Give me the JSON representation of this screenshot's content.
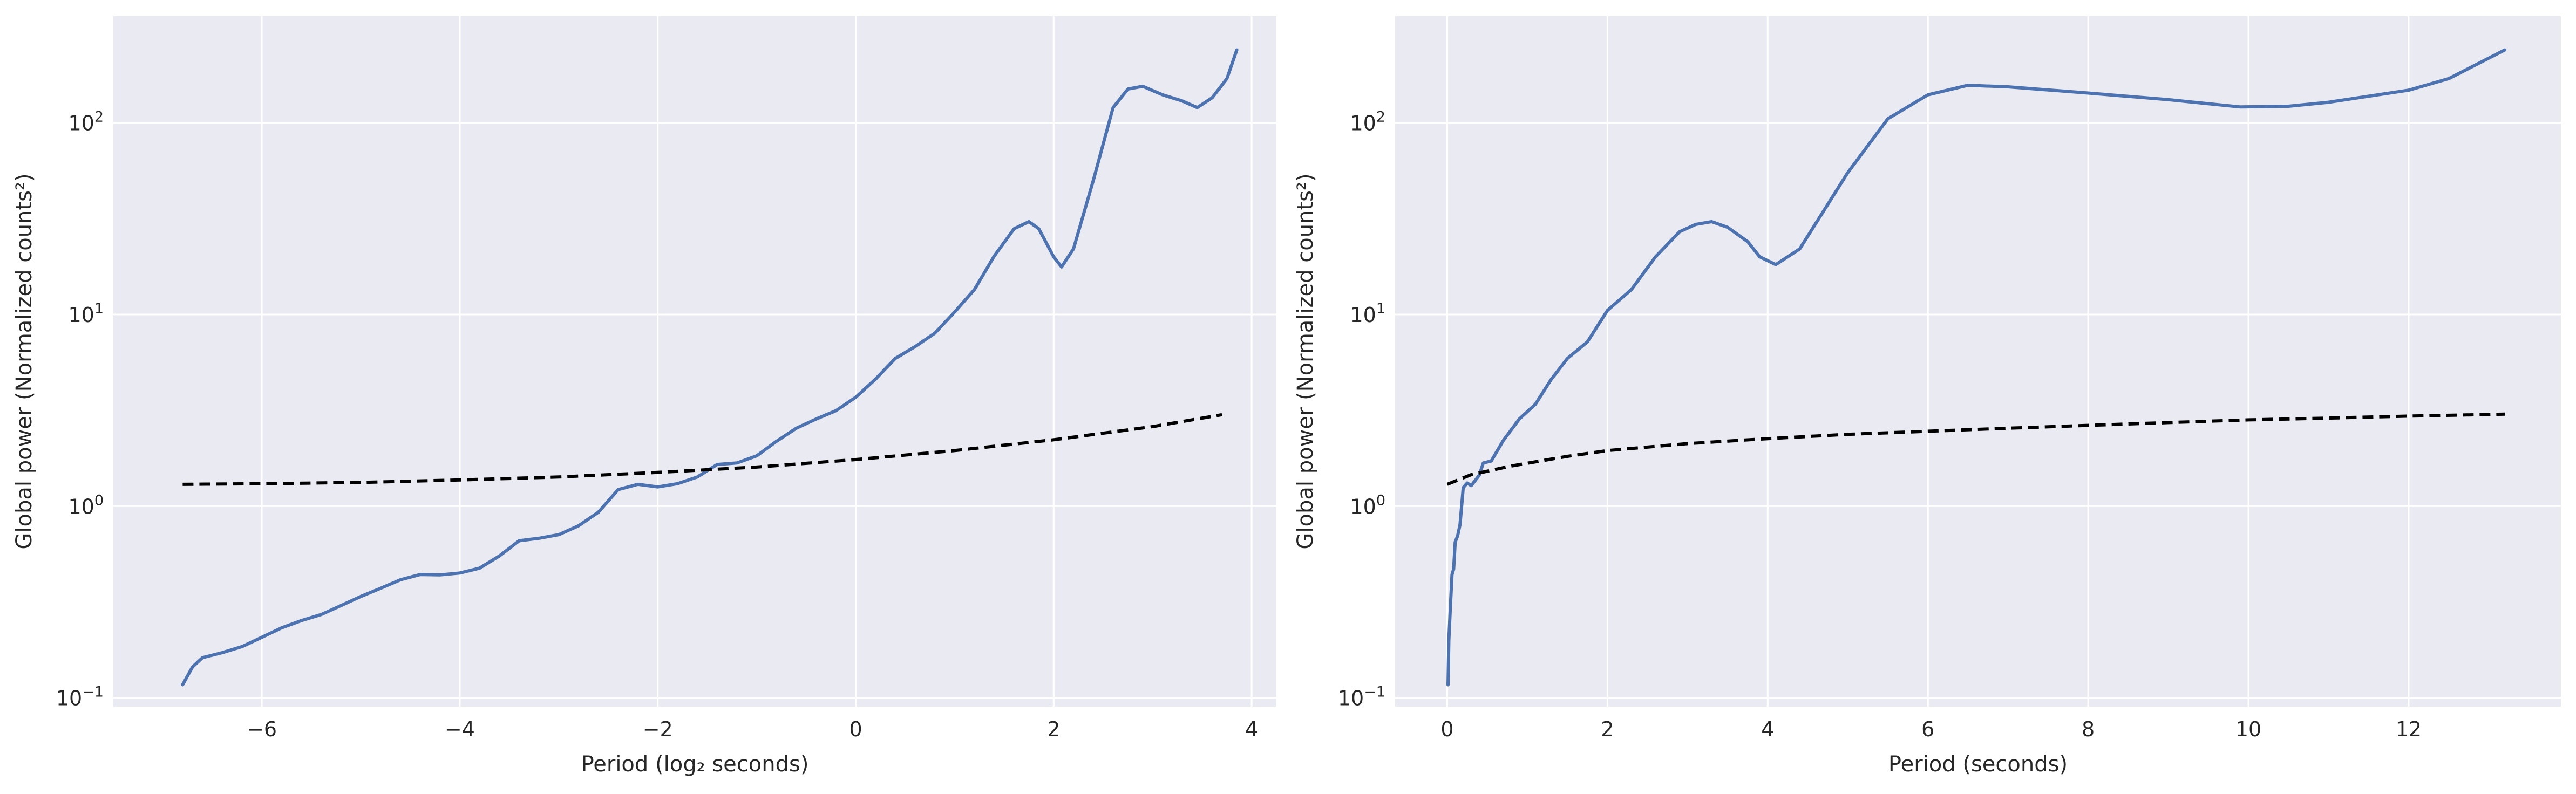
{
  "colors": {
    "background": "#ffffff",
    "plot_bg": "#eaeaf2",
    "grid": "#ffffff",
    "series": "#4c72b0",
    "significance": "#000000",
    "text": "#262626"
  },
  "chart_data": [
    {
      "type": "line",
      "xlabel": "Period (log₂ seconds)",
      "ylabel": "Global power (Normalized counts²)",
      "xlim": [
        -7.5,
        4.25
      ],
      "ylim": [
        0.09,
        360
      ],
      "yscale": "log",
      "grid": true,
      "xticks": [
        -6,
        -4,
        -2,
        0,
        2,
        4
      ],
      "xtick_labels": [
        "−6",
        "−4",
        "−2",
        "0",
        "2",
        "4"
      ],
      "yticks": [
        0.1,
        1,
        10,
        100
      ],
      "ytick_labels": [
        {
          "base": "10",
          "exp": "−1"
        },
        {
          "base": "10",
          "exp": "0"
        },
        {
          "base": "10",
          "exp": "1"
        },
        {
          "base": "10",
          "exp": "2"
        }
      ],
      "series": [
        {
          "style": "solid",
          "color": "#4c72b0",
          "points": [
            [
              -6.8,
              0.117
            ],
            [
              -6.7,
              0.145
            ],
            [
              -6.6,
              0.162
            ],
            [
              -6.4,
              0.172
            ],
            [
              -6.2,
              0.185
            ],
            [
              -6.0,
              0.207
            ],
            [
              -5.8,
              0.232
            ],
            [
              -5.6,
              0.253
            ],
            [
              -5.4,
              0.272
            ],
            [
              -5.2,
              0.303
            ],
            [
              -5.0,
              0.338
            ],
            [
              -4.8,
              0.373
            ],
            [
              -4.6,
              0.413
            ],
            [
              -4.4,
              0.44
            ],
            [
              -4.2,
              0.438
            ],
            [
              -4.0,
              0.448
            ],
            [
              -3.8,
              0.475
            ],
            [
              -3.6,
              0.55
            ],
            [
              -3.4,
              0.66
            ],
            [
              -3.2,
              0.68
            ],
            [
              -3.0,
              0.71
            ],
            [
              -2.8,
              0.79
            ],
            [
              -2.6,
              0.93
            ],
            [
              -2.4,
              1.22
            ],
            [
              -2.2,
              1.3
            ],
            [
              -2.0,
              1.26
            ],
            [
              -1.8,
              1.31
            ],
            [
              -1.6,
              1.42
            ],
            [
              -1.4,
              1.65
            ],
            [
              -1.2,
              1.68
            ],
            [
              -1.0,
              1.83
            ],
            [
              -0.8,
              2.18
            ],
            [
              -0.6,
              2.55
            ],
            [
              -0.4,
              2.85
            ],
            [
              -0.2,
              3.15
            ],
            [
              0.0,
              3.7
            ],
            [
              0.2,
              4.6
            ],
            [
              0.4,
              5.9
            ],
            [
              0.6,
              6.8
            ],
            [
              0.8,
              8.0
            ],
            [
              1.0,
              10.3
            ],
            [
              1.2,
              13.5
            ],
            [
              1.4,
              20.2
            ],
            [
              1.6,
              28.0
            ],
            [
              1.75,
              30.5
            ],
            [
              1.85,
              28.0
            ],
            [
              2.0,
              20.0
            ],
            [
              2.08,
              17.7
            ],
            [
              2.2,
              22.0
            ],
            [
              2.4,
              50.0
            ],
            [
              2.6,
              120.0
            ],
            [
              2.75,
              150.0
            ],
            [
              2.9,
              155.0
            ],
            [
              3.1,
              140.0
            ],
            [
              3.3,
              130.0
            ],
            [
              3.45,
              120.0
            ],
            [
              3.6,
              135.0
            ],
            [
              3.75,
              170.0
            ],
            [
              3.85,
              240.0
            ]
          ]
        },
        {
          "style": "dashed",
          "color": "#000000",
          "points": [
            [
              -6.8,
              1.3
            ],
            [
              -6.0,
              1.31
            ],
            [
              -5.0,
              1.33
            ],
            [
              -4.0,
              1.37
            ],
            [
              -3.0,
              1.42
            ],
            [
              -2.0,
              1.5
            ],
            [
              -1.0,
              1.6
            ],
            [
              0.0,
              1.75
            ],
            [
              1.0,
              1.95
            ],
            [
              2.0,
              2.22
            ],
            [
              3.0,
              2.6
            ],
            [
              3.7,
              3.0
            ]
          ]
        }
      ]
    },
    {
      "type": "line",
      "xlabel": "Period (seconds)",
      "ylabel": "Global power (Normalized counts²)",
      "xlim": [
        -0.65,
        13.9
      ],
      "ylim": [
        0.09,
        360
      ],
      "yscale": "log",
      "grid": true,
      "xticks": [
        0,
        2,
        4,
        6,
        8,
        10,
        12
      ],
      "xtick_labels": [
        "0",
        "2",
        "4",
        "6",
        "8",
        "10",
        "12"
      ],
      "yticks": [
        0.1,
        1,
        10,
        100
      ],
      "ytick_labels": [
        {
          "base": "10",
          "exp": "−1"
        },
        {
          "base": "10",
          "exp": "0"
        },
        {
          "base": "10",
          "exp": "1"
        },
        {
          "base": "10",
          "exp": "2"
        }
      ],
      "series": [
        {
          "style": "solid",
          "color": "#4c72b0",
          "points": [
            [
              0.01,
              0.117
            ],
            [
              0.02,
              0.2
            ],
            [
              0.04,
              0.3
            ],
            [
              0.06,
              0.44
            ],
            [
              0.08,
              0.47
            ],
            [
              0.1,
              0.65
            ],
            [
              0.13,
              0.7
            ],
            [
              0.16,
              0.8
            ],
            [
              0.2,
              1.25
            ],
            [
              0.25,
              1.32
            ],
            [
              0.3,
              1.28
            ],
            [
              0.4,
              1.45
            ],
            [
              0.45,
              1.68
            ],
            [
              0.55,
              1.72
            ],
            [
              0.7,
              2.2
            ],
            [
              0.9,
              2.85
            ],
            [
              1.1,
              3.4
            ],
            [
              1.3,
              4.6
            ],
            [
              1.5,
              5.9
            ],
            [
              1.75,
              7.2
            ],
            [
              2.0,
              10.5
            ],
            [
              2.3,
              13.5
            ],
            [
              2.6,
              20.0
            ],
            [
              2.9,
              27.0
            ],
            [
              3.1,
              29.5
            ],
            [
              3.3,
              30.5
            ],
            [
              3.5,
              28.5
            ],
            [
              3.75,
              24.0
            ],
            [
              3.9,
              20.0
            ],
            [
              4.1,
              18.2
            ],
            [
              4.4,
              22.0
            ],
            [
              5.0,
              55.0
            ],
            [
              5.5,
              105.0
            ],
            [
              6.0,
              140.0
            ],
            [
              6.5,
              157.0
            ],
            [
              7.0,
              154.0
            ],
            [
              8.0,
              143.0
            ],
            [
              9.0,
              132.0
            ],
            [
              9.9,
              121.0
            ],
            [
              10.5,
              122.0
            ],
            [
              11.0,
              128.0
            ],
            [
              12.0,
              148.0
            ],
            [
              12.5,
              170.0
            ],
            [
              13.2,
              240.0
            ]
          ]
        },
        {
          "style": "dashed",
          "color": "#000000",
          "points": [
            [
              0.0,
              1.3
            ],
            [
              0.3,
              1.46
            ],
            [
              0.8,
              1.62
            ],
            [
              1.5,
              1.82
            ],
            [
              2.0,
              1.95
            ],
            [
              3.0,
              2.12
            ],
            [
              4.0,
              2.25
            ],
            [
              5.0,
              2.37
            ],
            [
              6.0,
              2.46
            ],
            [
              7.0,
              2.55
            ],
            [
              8.0,
              2.64
            ],
            [
              9.0,
              2.73
            ],
            [
              10.0,
              2.82
            ],
            [
              11.0,
              2.88
            ],
            [
              12.0,
              2.95
            ],
            [
              13.2,
              3.02
            ]
          ]
        }
      ]
    }
  ]
}
